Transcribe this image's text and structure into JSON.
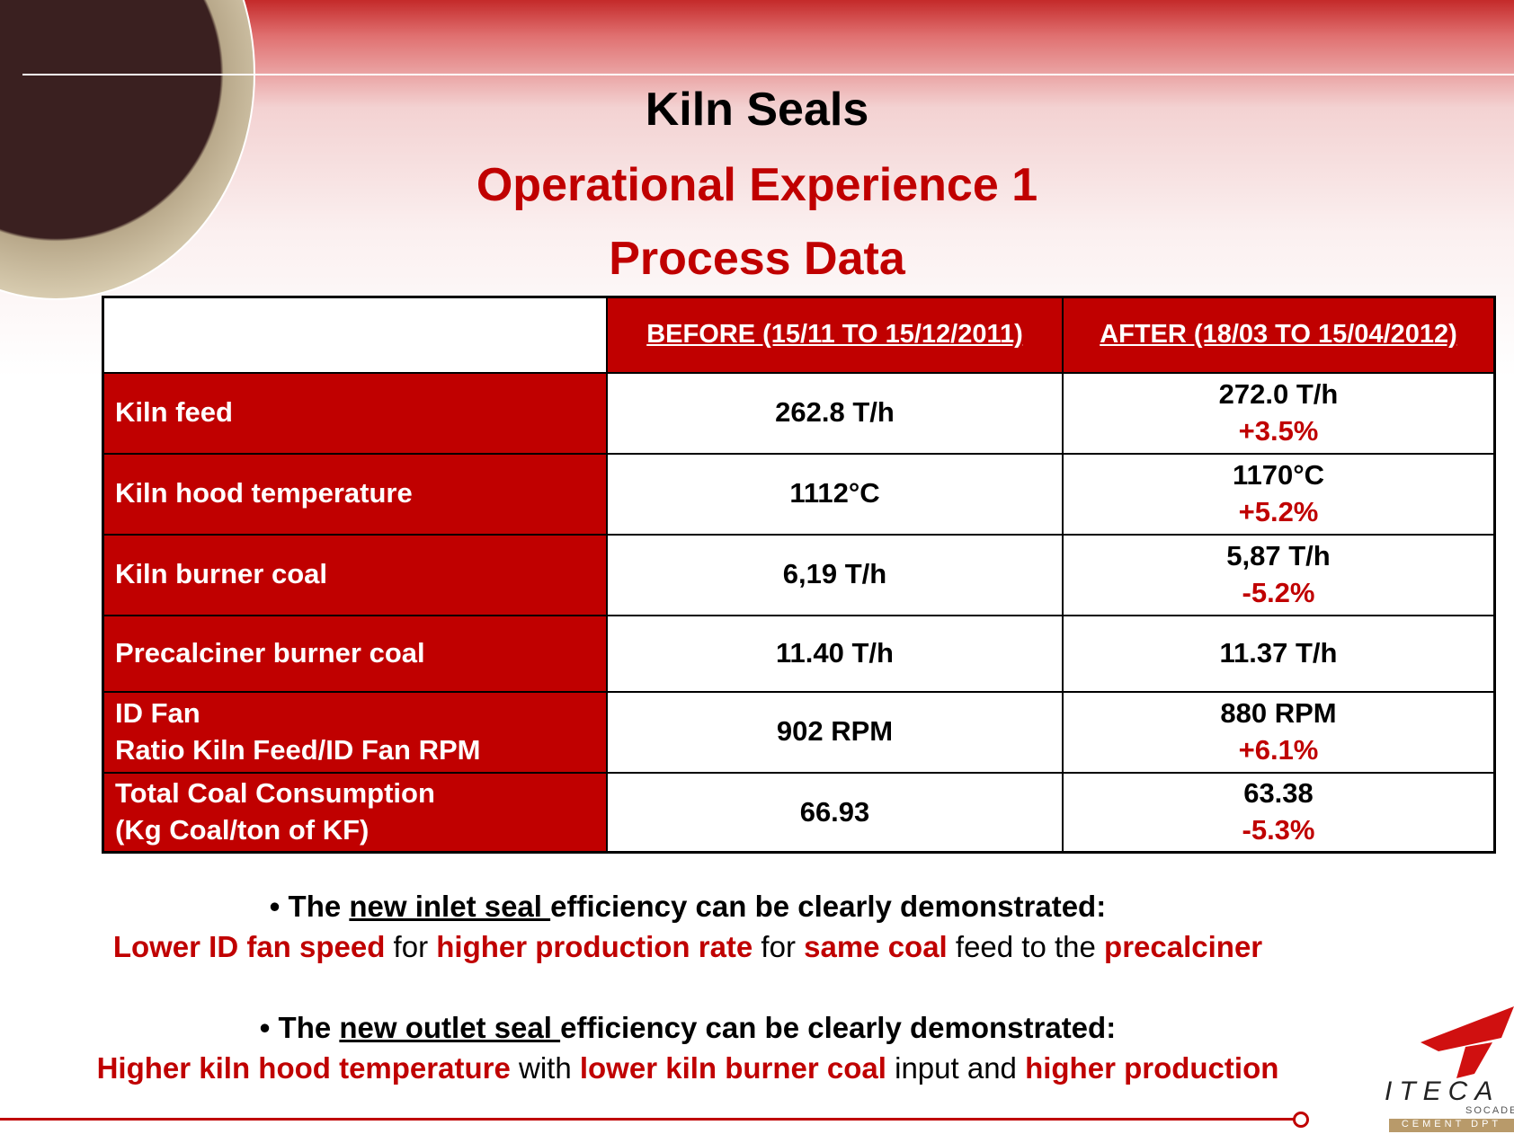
{
  "header": {
    "title": "Kiln Seals",
    "subtitle": "Operational Experience 1",
    "subtitle2": "Process Data"
  },
  "table": {
    "columns": [
      "BEFORE (15/11 TO 15/12/2011)",
      "AFTER (18/03 TO 15/04/2012)"
    ],
    "rows": [
      {
        "label": [
          "Kiln feed"
        ],
        "before": "262.8 T/h",
        "after": "272.0 T/h",
        "change": "+3.5%"
      },
      {
        "label": [
          "Kiln hood temperature"
        ],
        "before": "1112°C",
        "after": "1170°C",
        "change": "+5.2%"
      },
      {
        "label": [
          "Kiln burner coal"
        ],
        "before": "6,19 T/h",
        "after": "5,87 T/h",
        "change": "-5.2%"
      },
      {
        "label": [
          "Precalciner burner coal"
        ],
        "before": "11.40 T/h",
        "after": "11.37 T/h"
      },
      {
        "label": [
          "ID Fan",
          "Ratio Kiln Feed/ID Fan RPM"
        ],
        "before": "902 RPM",
        "after": "880 RPM",
        "change": "+6.1%"
      },
      {
        "label": [
          "Total Coal Consumption",
          "(Kg Coal/ton of KF)"
        ],
        "before": "66.93",
        "after": "63.38",
        "change": "-5.3%"
      }
    ]
  },
  "bullets": [
    {
      "lead": [
        {
          "text": "The "
        },
        {
          "text": "new inlet seal ",
          "underline": true
        },
        {
          "text": "efficiency can be clearly demonstrated:"
        }
      ],
      "detail": [
        {
          "text": "Lower ID fan speed",
          "red": true
        },
        {
          "text": " for "
        },
        {
          "text": "higher production rate",
          "red": true
        },
        {
          "text": " for "
        },
        {
          "text": "same coal",
          "red": true
        },
        {
          "text": " feed to the "
        },
        {
          "text": "precalciner",
          "red": true
        }
      ]
    },
    {
      "lead": [
        {
          "text": "The "
        },
        {
          "text": "new outlet seal ",
          "underline": true
        },
        {
          "text": "efficiency can be clearly demonstrated:"
        }
      ],
      "detail": [
        {
          "text": "Higher kiln hood temperature",
          "red": true
        },
        {
          "text": " with "
        },
        {
          "text": "lower kiln burner coal",
          "red": true
        },
        {
          "text": " input and "
        },
        {
          "text": "higher production",
          "red": true
        }
      ]
    }
  ],
  "logo": {
    "name": "ITECA",
    "sub": "SOCADE",
    "dept": "CEMENT DPT"
  }
}
